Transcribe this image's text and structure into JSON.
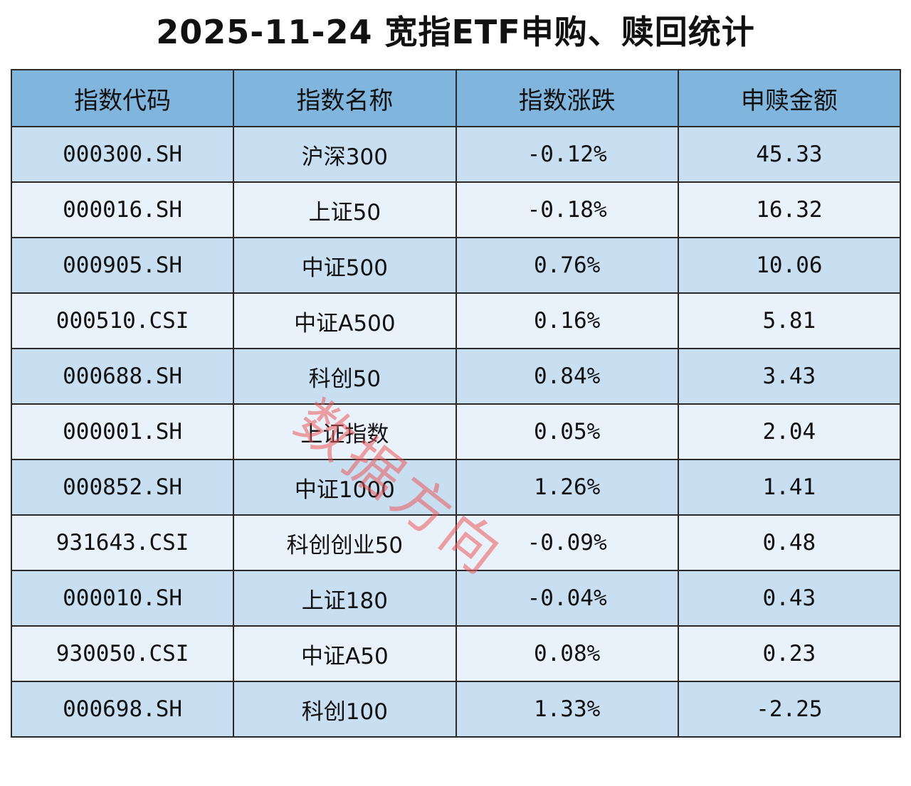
{
  "header": {
    "title": "2025-11-24 宽指ETF申购、赎回统计"
  },
  "table": {
    "columns": [
      "指数代码",
      "指数名称",
      "指数涨跌",
      "申赎金额"
    ],
    "rows": [
      [
        "000300.SH",
        "沪深300",
        "-0.12%",
        "45.33"
      ],
      [
        "000016.SH",
        "上证50",
        "-0.18%",
        "16.32"
      ],
      [
        "000905.SH",
        "中证500",
        "0.76%",
        "10.06"
      ],
      [
        "000510.CSI",
        "中证A500",
        "0.16%",
        "5.81"
      ],
      [
        "000688.SH",
        "科创50",
        "0.84%",
        "3.43"
      ],
      [
        "000001.SH",
        "上证指数",
        "0.05%",
        "2.04"
      ],
      [
        "000852.SH",
        "中证1000",
        "1.26%",
        "1.41"
      ],
      [
        "931643.CSI",
        "科创创业50",
        "-0.09%",
        "0.48"
      ],
      [
        "000010.SH",
        "上证180",
        "-0.04%",
        "0.43"
      ],
      [
        "930050.CSI",
        "中证A50",
        "0.08%",
        "0.23"
      ],
      [
        "000698.SH",
        "科创100",
        "1.33%",
        "-2.25"
      ]
    ]
  },
  "watermark": "数据方向"
}
